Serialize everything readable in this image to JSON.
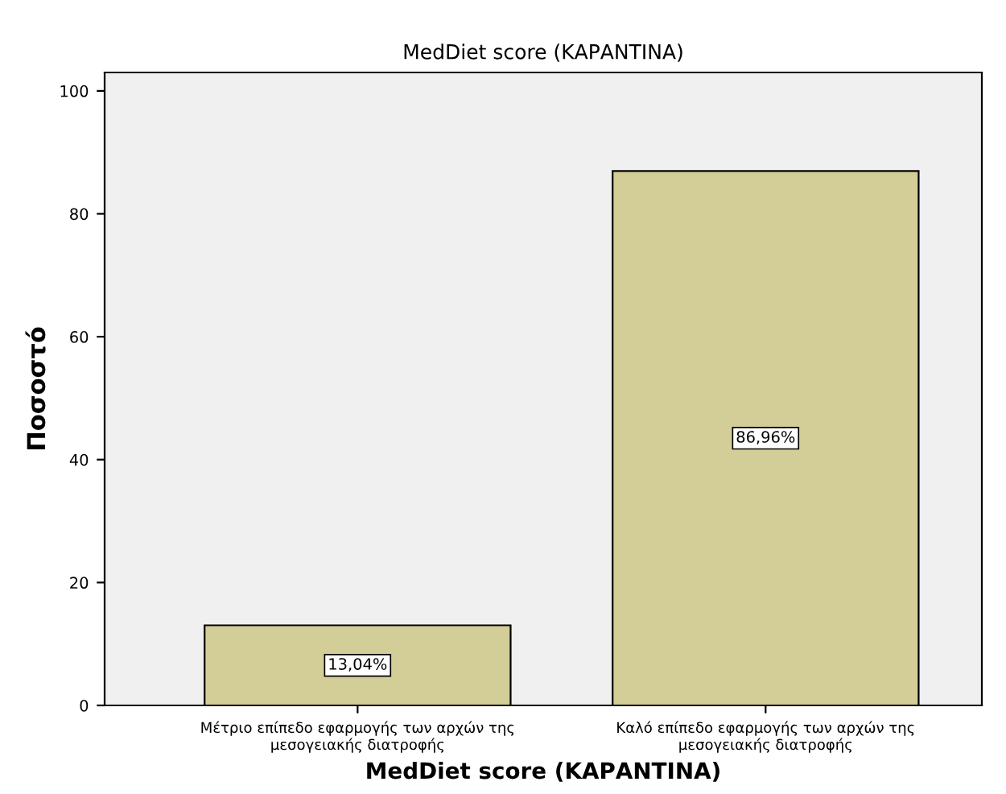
{
  "chart_data": {
    "type": "bar",
    "title": "MedDiet score (ΚΑΡΑΝΤΙΝΑ)",
    "xlabel": "MedDiet score (ΚΑΡΑΝΤΙΝΑ)",
    "ylabel": "Ποσοστό",
    "categories": [
      "Μέτριο επίπεδο εφαρμογής των αρχών της\nμεσογειακής διατροφής",
      "Καλό επίπεδο εφαρμογής των αρχών της\nμεσογειακής διατροφής"
    ],
    "values": [
      13.04,
      86.96
    ],
    "value_labels": [
      "13,04%",
      "86,96%"
    ],
    "color": "#d3ce97",
    "ylim": [
      0,
      103
    ],
    "yticks": [
      0,
      20,
      40,
      60,
      80,
      100
    ],
    "grid": false,
    "legend": false
  }
}
